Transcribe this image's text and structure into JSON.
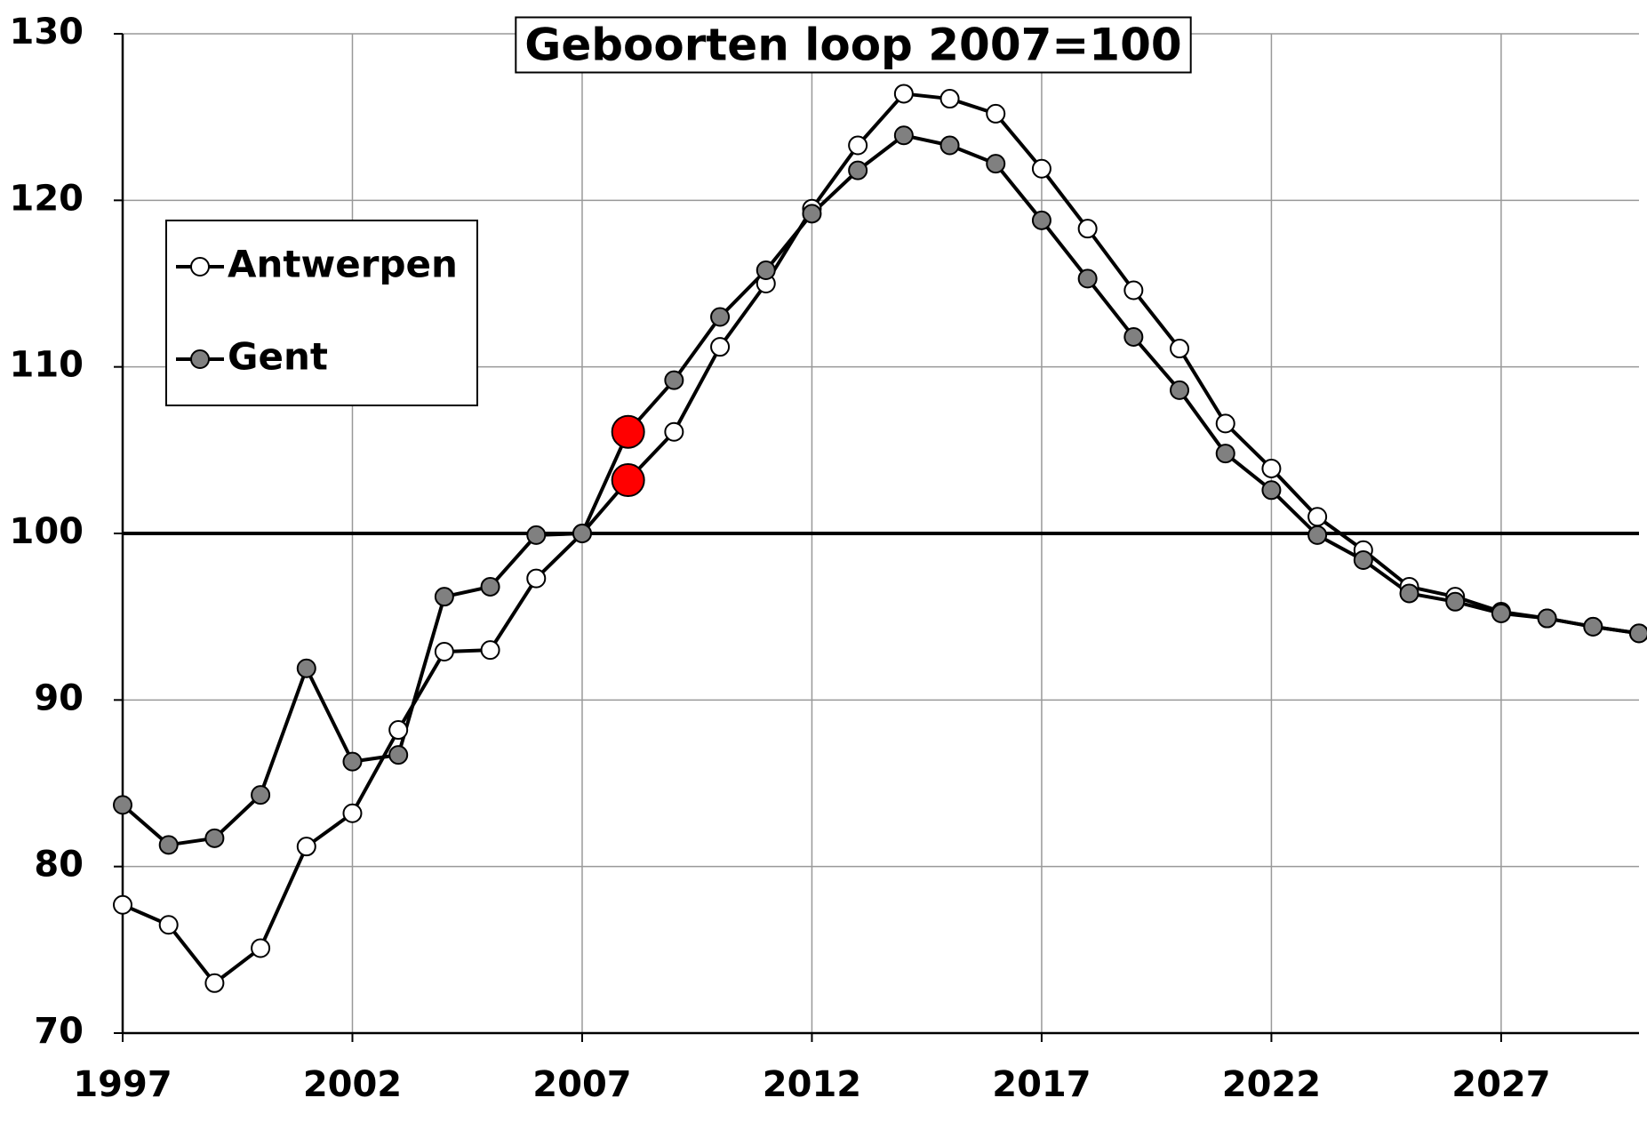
{
  "chart_data": {
    "type": "line",
    "title": "Geboorten loop 2007=100",
    "x": [
      1997,
      1998,
      1999,
      2000,
      2001,
      2002,
      2003,
      2004,
      2005,
      2006,
      2007,
      2008,
      2009,
      2010,
      2011,
      2012,
      2013,
      2014,
      2015,
      2016,
      2017,
      2018,
      2019,
      2020,
      2021,
      2022,
      2023,
      2024,
      2025,
      2026,
      2027,
      2028,
      2029,
      2030
    ],
    "series": [
      {
        "name": "Antwerpen",
        "color": "#ffffff",
        "values": [
          77.7,
          76.5,
          73.0,
          75.1,
          81.2,
          83.2,
          88.2,
          92.9,
          93.0,
          97.3,
          100,
          103.2,
          106.1,
          111.2,
          115.0,
          119.5,
          123.3,
          126.4,
          126.1,
          125.2,
          121.9,
          118.3,
          114.6,
          111.1,
          106.6,
          103.9,
          101.0,
          99.0,
          96.8,
          96.2,
          95.3,
          94.9,
          94.4,
          94.0
        ]
      },
      {
        "name": "Gent",
        "color": "#808080",
        "values": [
          83.7,
          81.3,
          81.7,
          84.3,
          91.9,
          86.3,
          86.7,
          96.2,
          96.8,
          99.9,
          100,
          106.1,
          109.2,
          113.0,
          115.8,
          119.2,
          121.8,
          123.9,
          123.3,
          122.2,
          118.8,
          115.3,
          111.8,
          108.6,
          104.8,
          102.6,
          99.9,
          98.4,
          96.4,
          95.9,
          95.2,
          94.9,
          94.4,
          94.0
        ]
      }
    ],
    "highlight_x": 2008,
    "highlight_color": "#ff0000",
    "reference_line": 100,
    "xlim": [
      1997,
      2030
    ],
    "xticks": [
      1997,
      2002,
      2007,
      2012,
      2017,
      2022,
      2027
    ],
    "ylim": [
      70,
      130
    ],
    "yticks": [
      70,
      80,
      90,
      100,
      110,
      120,
      130
    ],
    "grid": true,
    "legend": "upper left"
  }
}
